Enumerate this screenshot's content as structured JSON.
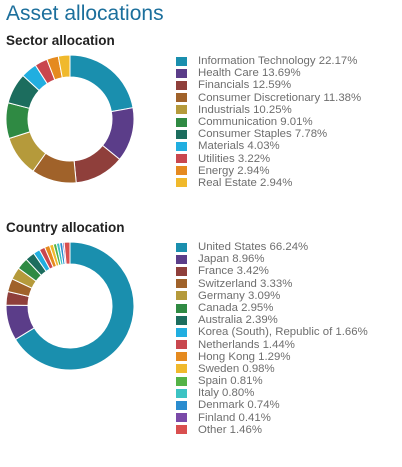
{
  "title": "Asset allocations",
  "chart_data": [
    {
      "type": "pie",
      "title": "Sector allocation",
      "legend_position": "right",
      "slices": [
        {
          "label": "Information Technology",
          "display": "22.17%",
          "value": 22.17,
          "color": "#1a8fae"
        },
        {
          "label": "Health Care",
          "display": "13.69%",
          "value": 13.69,
          "color": "#5b3d89"
        },
        {
          "label": "Financials",
          "display": "12.59%",
          "value": 12.59,
          "color": "#8f3f3b"
        },
        {
          "label": "Consumer Discretionary",
          "display": "11.38%",
          "value": 11.38,
          "color": "#a0622a"
        },
        {
          "label": "Industrials",
          "display": "10.25%",
          "value": 10.25,
          "color": "#b59a3b"
        },
        {
          "label": "Communication",
          "display": "9.01%",
          "value": 9.01,
          "color": "#2f8a43"
        },
        {
          "label": "Consumer Staples",
          "display": "7.78%",
          "value": 7.78,
          "color": "#1c6d5e"
        },
        {
          "label": "Materials",
          "display": "4.03%",
          "value": 4.03,
          "color": "#21aee0"
        },
        {
          "label": "Utilities",
          "display": "3.22%",
          "value": 3.22,
          "color": "#c9474e"
        },
        {
          "label": "Energy",
          "display": "2.94%",
          "value": 2.94,
          "color": "#e58a1f"
        },
        {
          "label": "Real Estate",
          "display": "2.94%",
          "value": 2.94,
          "color": "#f0b92c"
        }
      ]
    },
    {
      "type": "pie",
      "title": "Country allocation",
      "legend_position": "right",
      "slices": [
        {
          "label": "United States",
          "display": "66.24%",
          "value": 66.24,
          "color": "#1a8fae"
        },
        {
          "label": "Japan",
          "display": "8.96%",
          "value": 8.96,
          "color": "#5b3d89"
        },
        {
          "label": "France",
          "display": "3.42%",
          "value": 3.42,
          "color": "#8f3f3b"
        },
        {
          "label": "Switzerland",
          "display": "3.33%",
          "value": 3.33,
          "color": "#a0622a"
        },
        {
          "label": "Germany",
          "display": "3.09%",
          "value": 3.09,
          "color": "#b59a3b"
        },
        {
          "label": "Canada",
          "display": "2.95%",
          "value": 2.95,
          "color": "#2f8a43"
        },
        {
          "label": "Australia",
          "display": "2.39%",
          "value": 2.39,
          "color": "#1c6d5e"
        },
        {
          "label": "Korea (South), Republic of",
          "display": "1.66%",
          "value": 1.66,
          "color": "#21aee0"
        },
        {
          "label": "Netherlands",
          "display": "1.44%",
          "value": 1.44,
          "color": "#c9474e"
        },
        {
          "label": "Hong Kong",
          "display": "1.29%",
          "value": 1.29,
          "color": "#e58a1f"
        },
        {
          "label": "Sweden",
          "display": "0.98%",
          "value": 0.98,
          "color": "#f0b92c"
        },
        {
          "label": "Spain",
          "display": "0.81%",
          "value": 0.81,
          "color": "#54b346"
        },
        {
          "label": "Italy",
          "display": "0.80%",
          "value": 0.8,
          "color": "#3cc3c3"
        },
        {
          "label": "Denmark",
          "display": "0.74%",
          "value": 0.74,
          "color": "#2a8ccf"
        },
        {
          "label": "Finland",
          "display": "0.41%",
          "value": 0.41,
          "color": "#7a4aa8"
        },
        {
          "label": "Other",
          "display": "1.46%",
          "value": 1.46,
          "color": "#d94f4f"
        }
      ]
    }
  ]
}
